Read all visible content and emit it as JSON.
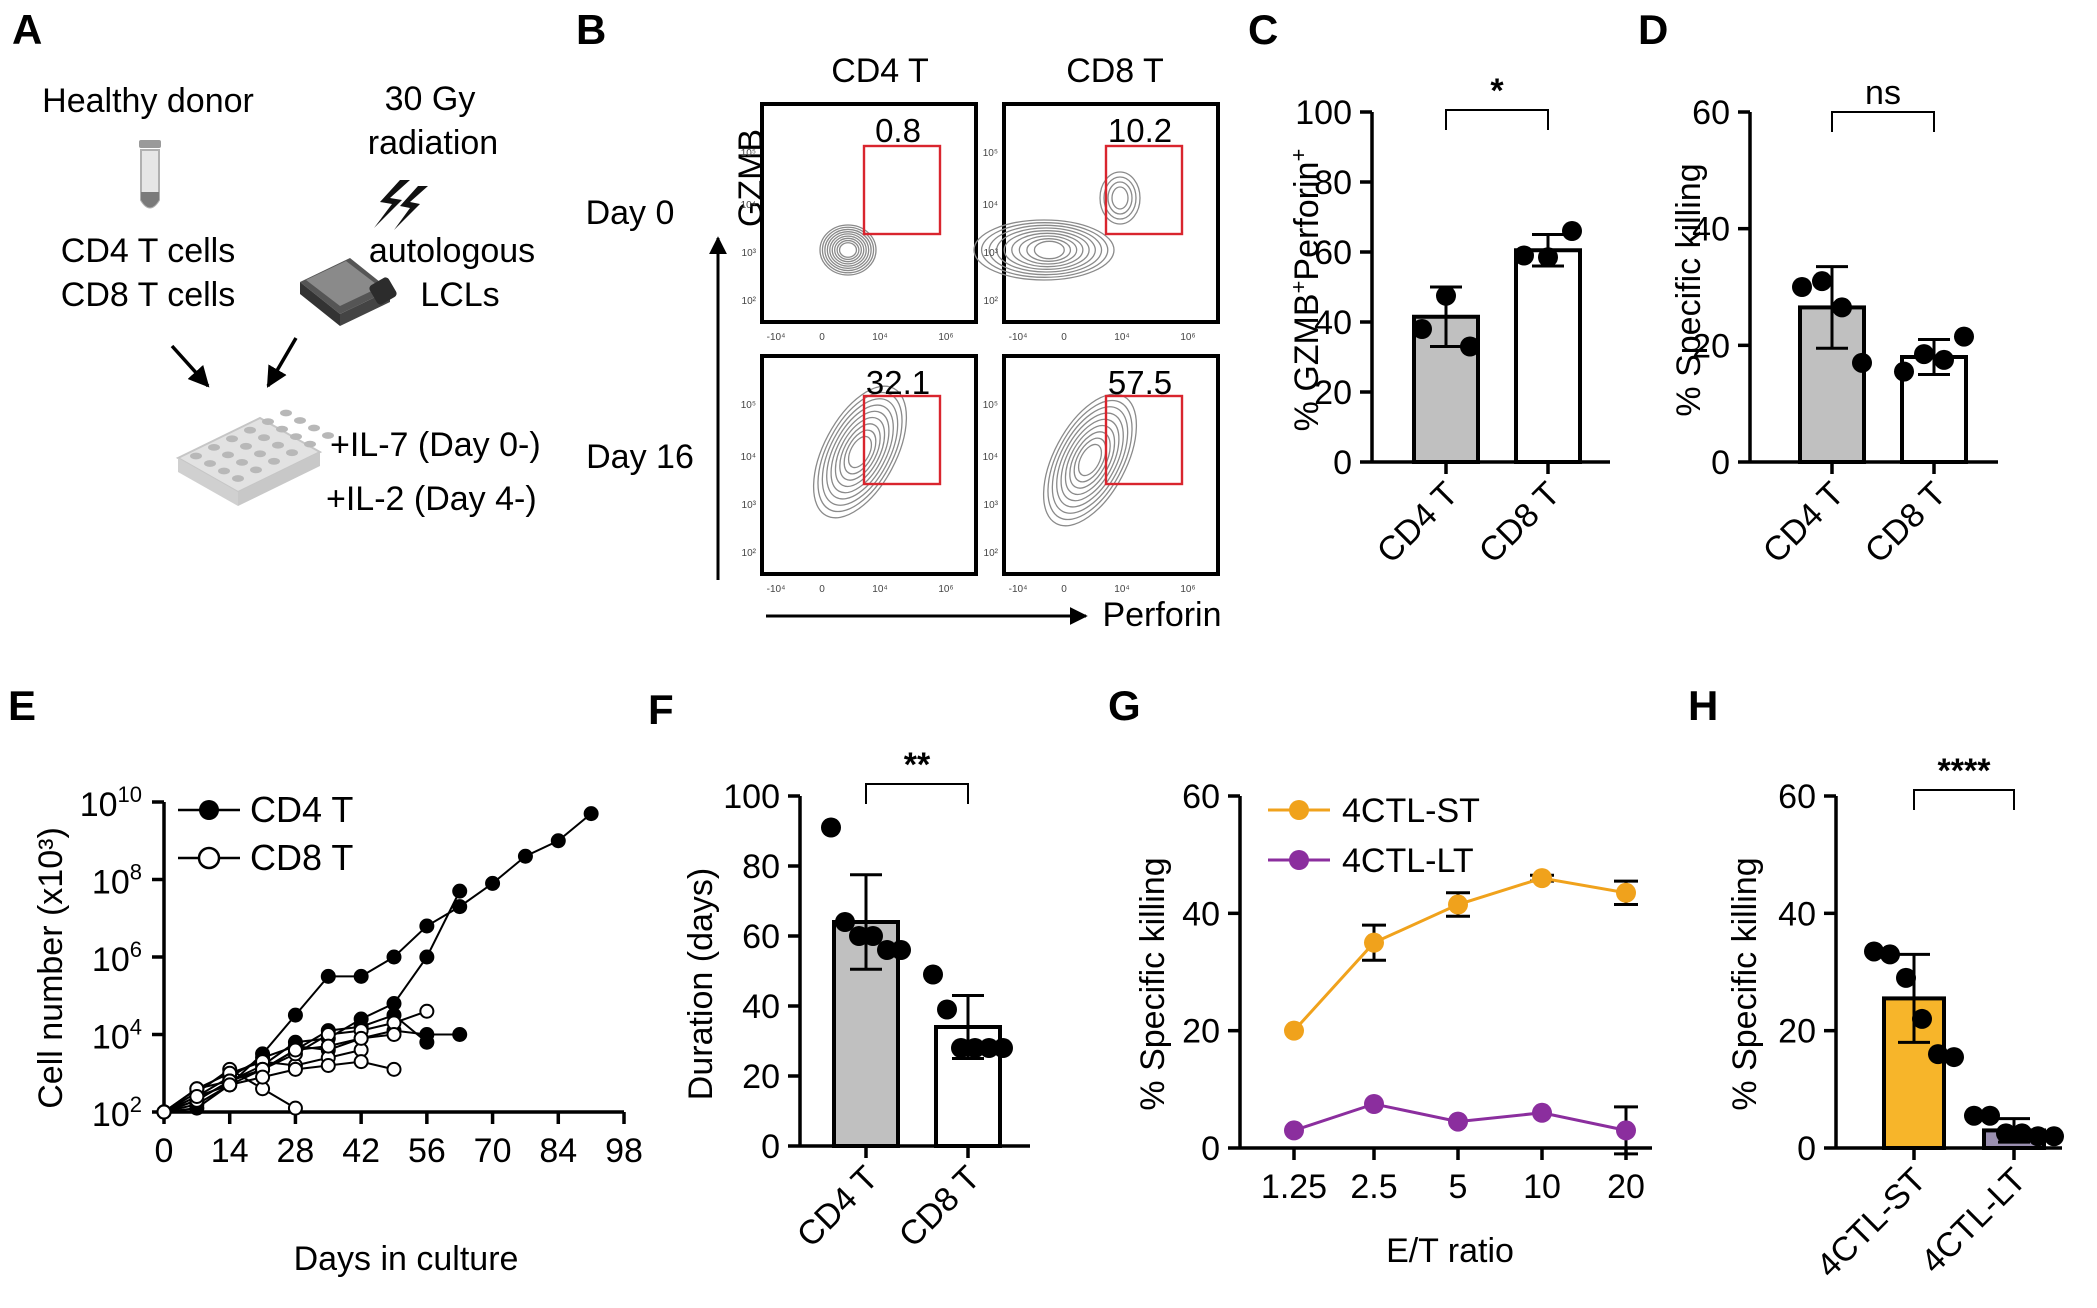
{
  "colors": {
    "gray_bar": "#c0c0c0",
    "white_bar": "#ffffff",
    "orange": "#f0a21c",
    "orange_bar": "#f7b52a",
    "purple": "#8b2e9e",
    "gate_red": "#d9252e",
    "contour": "#8a8a8a"
  },
  "panels": {
    "A": {
      "letter": "A",
      "healthy_donor": "Healthy donor",
      "radiation_line1": "30 Gy",
      "radiation_line2": "radiation",
      "cd4_cells": "CD4 T cells",
      "cd8_cells": "CD8 T cells",
      "lcl_line1": "autologous",
      "lcl_line2": "LCLs",
      "il7": "+IL-7 (Day 0-)",
      "il2": "+IL-2 (Day 4-)"
    },
    "B": {
      "letter": "B",
      "col_cd4": "CD4 T",
      "col_cd8": "CD8 T",
      "row_day0": "Day 0",
      "row_day16": "Day 16",
      "y_marker": "GZMB",
      "x_marker": "Perforin",
      "gate_values": [
        "0.8",
        "10.2",
        "32.1",
        "57.5"
      ],
      "y_ticks": [
        "10⁵",
        "10⁴",
        "10³",
        "10²"
      ],
      "x_ticks": [
        "-10⁴",
        "0",
        "10⁴",
        "10⁶"
      ]
    },
    "C": {
      "letter": "C",
      "significance": "*",
      "ylabel_main": "% GZMB",
      "ylabel_sup1": "+",
      "ylabel_mid": "Perforin",
      "ylabel_sup2": "+"
    },
    "D": {
      "letter": "D",
      "significance": "ns",
      "ylabel": "% Specific killing"
    },
    "E": {
      "letter": "E",
      "ylabel": "Cell number (x10³)",
      "xlabel": "Days in culture",
      "legend_cd4": "CD4 T",
      "legend_cd8": "CD8 T",
      "y_tick_labels": [
        {
          "base": "10",
          "exp": "2"
        },
        {
          "base": "10",
          "exp": "4"
        },
        {
          "base": "10",
          "exp": "6"
        },
        {
          "base": "10",
          "exp": "8"
        },
        {
          "base": "10",
          "exp": "10"
        }
      ]
    },
    "F": {
      "letter": "F",
      "significance": "**",
      "ylabel": "Duration (days)"
    },
    "G": {
      "letter": "G",
      "ylabel": "% Specific killing",
      "xlabel": "E/T ratio"
    },
    "H": {
      "letter": "H",
      "significance": "****",
      "ylabel": "% Specific killing"
    }
  },
  "chart_data": [
    {
      "id": "C",
      "type": "bar",
      "categories": [
        "CD4 T",
        "CD8 T"
      ],
      "values": [
        41.5,
        60.5
      ],
      "sd": [
        8.5,
        4.5
      ],
      "points": [
        [
          38,
          47.5,
          33
        ],
        [
          59,
          58.5,
          66
        ]
      ],
      "ylim": [
        0,
        100
      ],
      "yticks": [
        0,
        20,
        40,
        60,
        80,
        100
      ],
      "ylabel": "% GZMB+Perforin+",
      "annotation": "*"
    },
    {
      "id": "D",
      "type": "bar",
      "categories": [
        "CD4 T",
        "CD8 T"
      ],
      "values": [
        26.5,
        18
      ],
      "sd": [
        7,
        3
      ],
      "points": [
        [
          30,
          31,
          26.5,
          17
        ],
        [
          15.5,
          18.5,
          17.5,
          21.5
        ]
      ],
      "ylim": [
        0,
        60
      ],
      "yticks": [
        0,
        20,
        40,
        60
      ],
      "ylabel": "% Specific killing",
      "annotation": "ns"
    },
    {
      "id": "E",
      "type": "line",
      "scale": "log10",
      "xlabel": "Days in culture",
      "ylabel": "Cell number (x10³)",
      "xticks": [
        0,
        14,
        28,
        42,
        56,
        70,
        84,
        98
      ],
      "ylim_log10": [
        2,
        10
      ],
      "series": [
        {
          "name": "CD4 T",
          "filled": true,
          "x": [
            0,
            7,
            14,
            21,
            28,
            35,
            42,
            49,
            56,
            63,
            70,
            77,
            84,
            91
          ],
          "log10_y": [
            2,
            2.1,
            2.7,
            3.5,
            4.5,
            5.5,
            5.5,
            6,
            6.8,
            7.3,
            7.9,
            8.6,
            9,
            9.7
          ]
        },
        {
          "name": "CD4 T",
          "filled": true,
          "x": [
            0,
            7,
            14,
            21,
            28,
            35,
            42,
            49,
            56,
            63
          ],
          "log10_y": [
            2,
            2.3,
            2.8,
            3.2,
            3.8,
            3.9,
            4.4,
            4.8,
            6,
            7.7
          ]
        },
        {
          "name": "CD4 T",
          "filled": true,
          "x": [
            0,
            7,
            14,
            21,
            28,
            35,
            42,
            49,
            56
          ],
          "log10_y": [
            2,
            2.2,
            2.7,
            3.1,
            3.6,
            4.1,
            4.2,
            4.5,
            3.8
          ]
        },
        {
          "name": "CD4 T",
          "filled": true,
          "x": [
            0,
            7,
            14,
            21,
            28,
            35,
            42,
            49,
            56,
            63
          ],
          "log10_y": [
            2,
            2.4,
            2.9,
            3.4,
            3.7,
            3.6,
            3.9,
            4.1,
            4,
            4
          ]
        },
        {
          "name": "CD8 T",
          "filled": false,
          "x": [
            0,
            7,
            14,
            21,
            28
          ],
          "log10_y": [
            2,
            2.5,
            3.1,
            2.6,
            2.1
          ]
        },
        {
          "name": "CD8 T",
          "filled": false,
          "x": [
            0,
            7,
            14,
            21,
            28,
            35,
            42
          ],
          "log10_y": [
            2,
            2.6,
            3,
            3.3,
            3.2,
            3.4,
            3.6
          ]
        },
        {
          "name": "CD8 T",
          "filled": false,
          "x": [
            0,
            7,
            14,
            21,
            28,
            35,
            42,
            49,
            56
          ],
          "log10_y": [
            2,
            2.3,
            2.8,
            3.1,
            3.5,
            4,
            4.1,
            4.3,
            4.6
          ]
        },
        {
          "name": "CD8 T",
          "filled": false,
          "x": [
            0,
            7,
            14,
            21,
            28,
            35,
            42,
            49
          ],
          "log10_y": [
            2,
            2.6,
            2.8,
            3.1,
            3.6,
            3.7,
            3.9,
            4.0
          ]
        },
        {
          "name": "CD8 T",
          "filled": false,
          "x": [
            0,
            7,
            14,
            21,
            28,
            35,
            42,
            49
          ],
          "log10_y": [
            2,
            2.4,
            2.7,
            2.9,
            3.1,
            3.2,
            3.3,
            3.1
          ]
        }
      ]
    },
    {
      "id": "F",
      "type": "bar",
      "categories": [
        "CD4 T",
        "CD8 T"
      ],
      "values": [
        64,
        34
      ],
      "sd": [
        13.5,
        9
      ],
      "points": [
        [
          91,
          64,
          60,
          60,
          56,
          56
        ],
        [
          49,
          39,
          28,
          28,
          28,
          28
        ]
      ],
      "ylim": [
        0,
        100
      ],
      "yticks": [
        0,
        20,
        40,
        60,
        80,
        100
      ],
      "ylabel": "Duration (days)",
      "annotation": "**"
    },
    {
      "id": "G",
      "type": "line",
      "categories": [
        "1.25",
        "2.5",
        "5",
        "10",
        "20"
      ],
      "ylim": [
        0,
        60
      ],
      "yticks": [
        0,
        20,
        40,
        60
      ],
      "xlabel": "E/T ratio",
      "ylabel": "% Specific killing",
      "series": [
        {
          "name": "4CTL-ST",
          "values": [
            20,
            35,
            41.5,
            46,
            43.5
          ],
          "sd": [
            0,
            3,
            2,
            0.5,
            2
          ]
        },
        {
          "name": "4CTL-LT",
          "values": [
            3,
            7.5,
            4.5,
            6,
            3
          ],
          "sd": [
            0,
            0,
            0,
            0,
            4
          ]
        }
      ]
    },
    {
      "id": "H",
      "type": "bar",
      "categories": [
        "4CTL-ST",
        "4CTL-LT"
      ],
      "values": [
        25.5,
        3
      ],
      "sd": [
        7.5,
        2
      ],
      "points": [
        [
          33.5,
          33,
          29,
          22,
          16,
          15.5
        ],
        [
          5.5,
          5.5,
          2.5,
          2.5,
          2,
          2
        ]
      ],
      "ylim": [
        0,
        60
      ],
      "yticks": [
        0,
        20,
        40,
        60
      ],
      "ylabel": "% Specific killing",
      "annotation": "****"
    }
  ]
}
